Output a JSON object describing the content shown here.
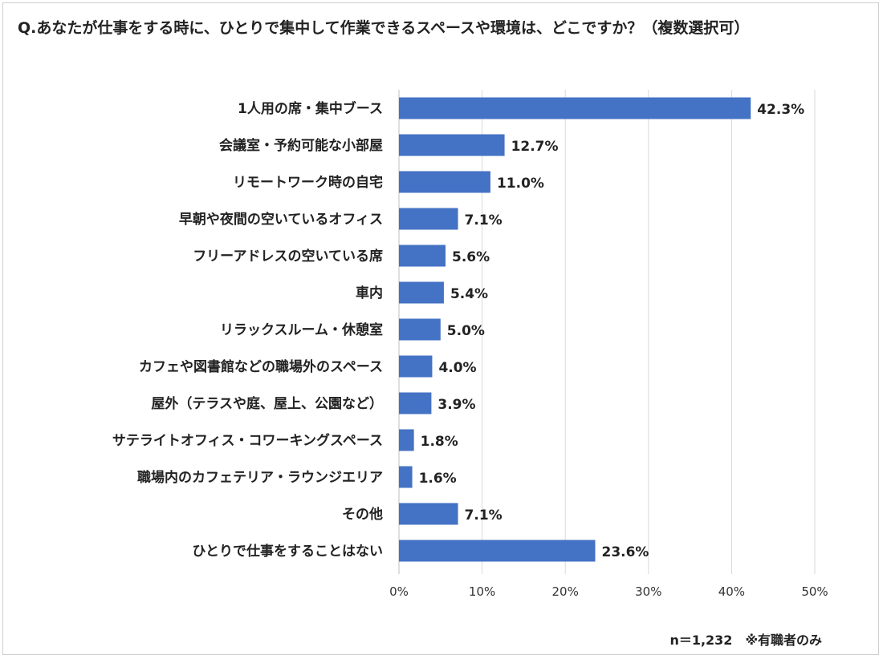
{
  "chart_data": {
    "type": "bar",
    "orientation": "horizontal",
    "title": "Q.あなたが仕事をする時に、ひとりで集中して作業できるスペースや環境は、どこですか？（複数選択可）",
    "categories": [
      "1人用の席・集中ブース",
      "会議室・予約可能な小部屋",
      "リモートワーク時の自宅",
      "早朝や夜間の空いているオフィス",
      "フリーアドレスの空いている席",
      "車内",
      "リラックスルーム・休憩室",
      "カフェや図書館などの職場外のスペース",
      "屋外（テラスや庭、屋上、公園など）",
      "サテライトオフィス・コワーキングスペース",
      "職場内のカフェテリア・ラウンジエリア",
      "その他",
      "ひとりで仕事をすることはない"
    ],
    "values": [
      42.3,
      12.7,
      11.0,
      7.1,
      5.6,
      5.4,
      5.0,
      4.0,
      3.9,
      1.8,
      1.6,
      7.1,
      23.6
    ],
    "value_labels": [
      "42.3%",
      "12.7%",
      "11.0%",
      "7.1%",
      "5.6%",
      "5.4%",
      "5.0%",
      "4.0%",
      "3.9%",
      "1.8%",
      "1.6%",
      "7.1%",
      "23.6%"
    ],
    "xlim": [
      0,
      50
    ],
    "x_ticks": [
      "0%",
      "10%",
      "20%",
      "30%",
      "40%",
      "50%"
    ],
    "grid": true,
    "bar_color": "#4472C4",
    "grid_color": "#d9d9d9"
  },
  "footnote": "n＝1,232　※有職者のみ"
}
